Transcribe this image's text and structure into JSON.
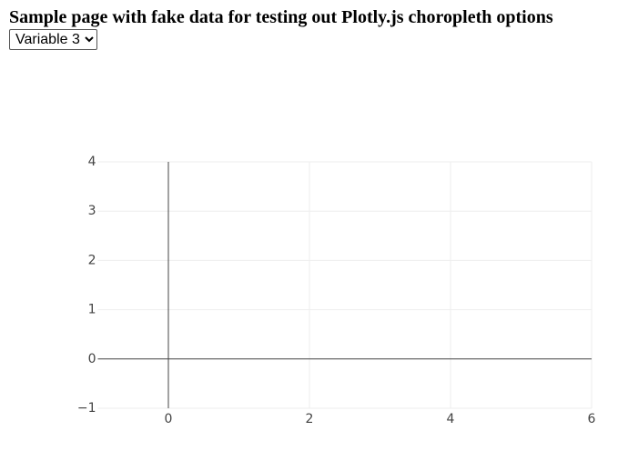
{
  "header": {
    "title": "Sample page with fake data for testing out Plotly.js choropleth options"
  },
  "select": {
    "value": "Variable 3"
  },
  "chart_data": {
    "type": "scatter",
    "xlim": [
      -1,
      6
    ],
    "xticks": [
      0,
      2,
      4,
      6
    ],
    "ylim": [
      -1,
      4
    ],
    "yticks": [
      {
        "value": -1,
        "label": "−1"
      },
      0,
      1,
      2,
      3,
      4
    ],
    "grid": true
  }
}
